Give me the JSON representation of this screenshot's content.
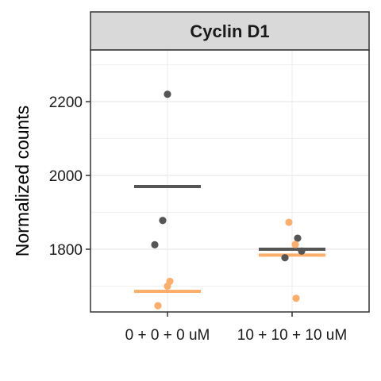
{
  "chart_data": {
    "type": "scatter",
    "title": "Cyclin D1",
    "ylabel": "Normalized counts",
    "xlabel": "",
    "categories": [
      "0 + 0 + 0 uM",
      "10 + 10 + 10 uM"
    ],
    "ylim": [
      1630,
      2340
    ],
    "yticks": [
      1800,
      2000,
      2200
    ],
    "grid": true,
    "legend": "none",
    "series": [
      {
        "color": "#555555",
        "points": [
          {
            "category": "0 + 0 + 0 uM",
            "y": 2220
          },
          {
            "category": "0 + 0 + 0 uM",
            "y": 1878
          },
          {
            "category": "0 + 0 + 0 uM",
            "y": 1812
          },
          {
            "category": "10 + 10 + 10 uM",
            "y": 1830
          },
          {
            "category": "10 + 10 + 10 uM",
            "y": 1795
          },
          {
            "category": "10 + 10 + 10 uM",
            "y": 1777
          }
        ],
        "means": [
          1970,
          1800
        ]
      },
      {
        "color": "#FDAE6B",
        "points": [
          {
            "category": "0 + 0 + 0 uM",
            "y": 1713
          },
          {
            "category": "0 + 0 + 0 uM",
            "y": 1700
          },
          {
            "category": "0 + 0 + 0 uM",
            "y": 1647
          },
          {
            "category": "10 + 10 + 10 uM",
            "y": 1873
          },
          {
            "category": "10 + 10 + 10 uM",
            "y": 1813
          },
          {
            "category": "10 + 10 + 10 uM",
            "y": 1667
          }
        ],
        "means": [
          1686,
          1784
        ]
      }
    ]
  }
}
